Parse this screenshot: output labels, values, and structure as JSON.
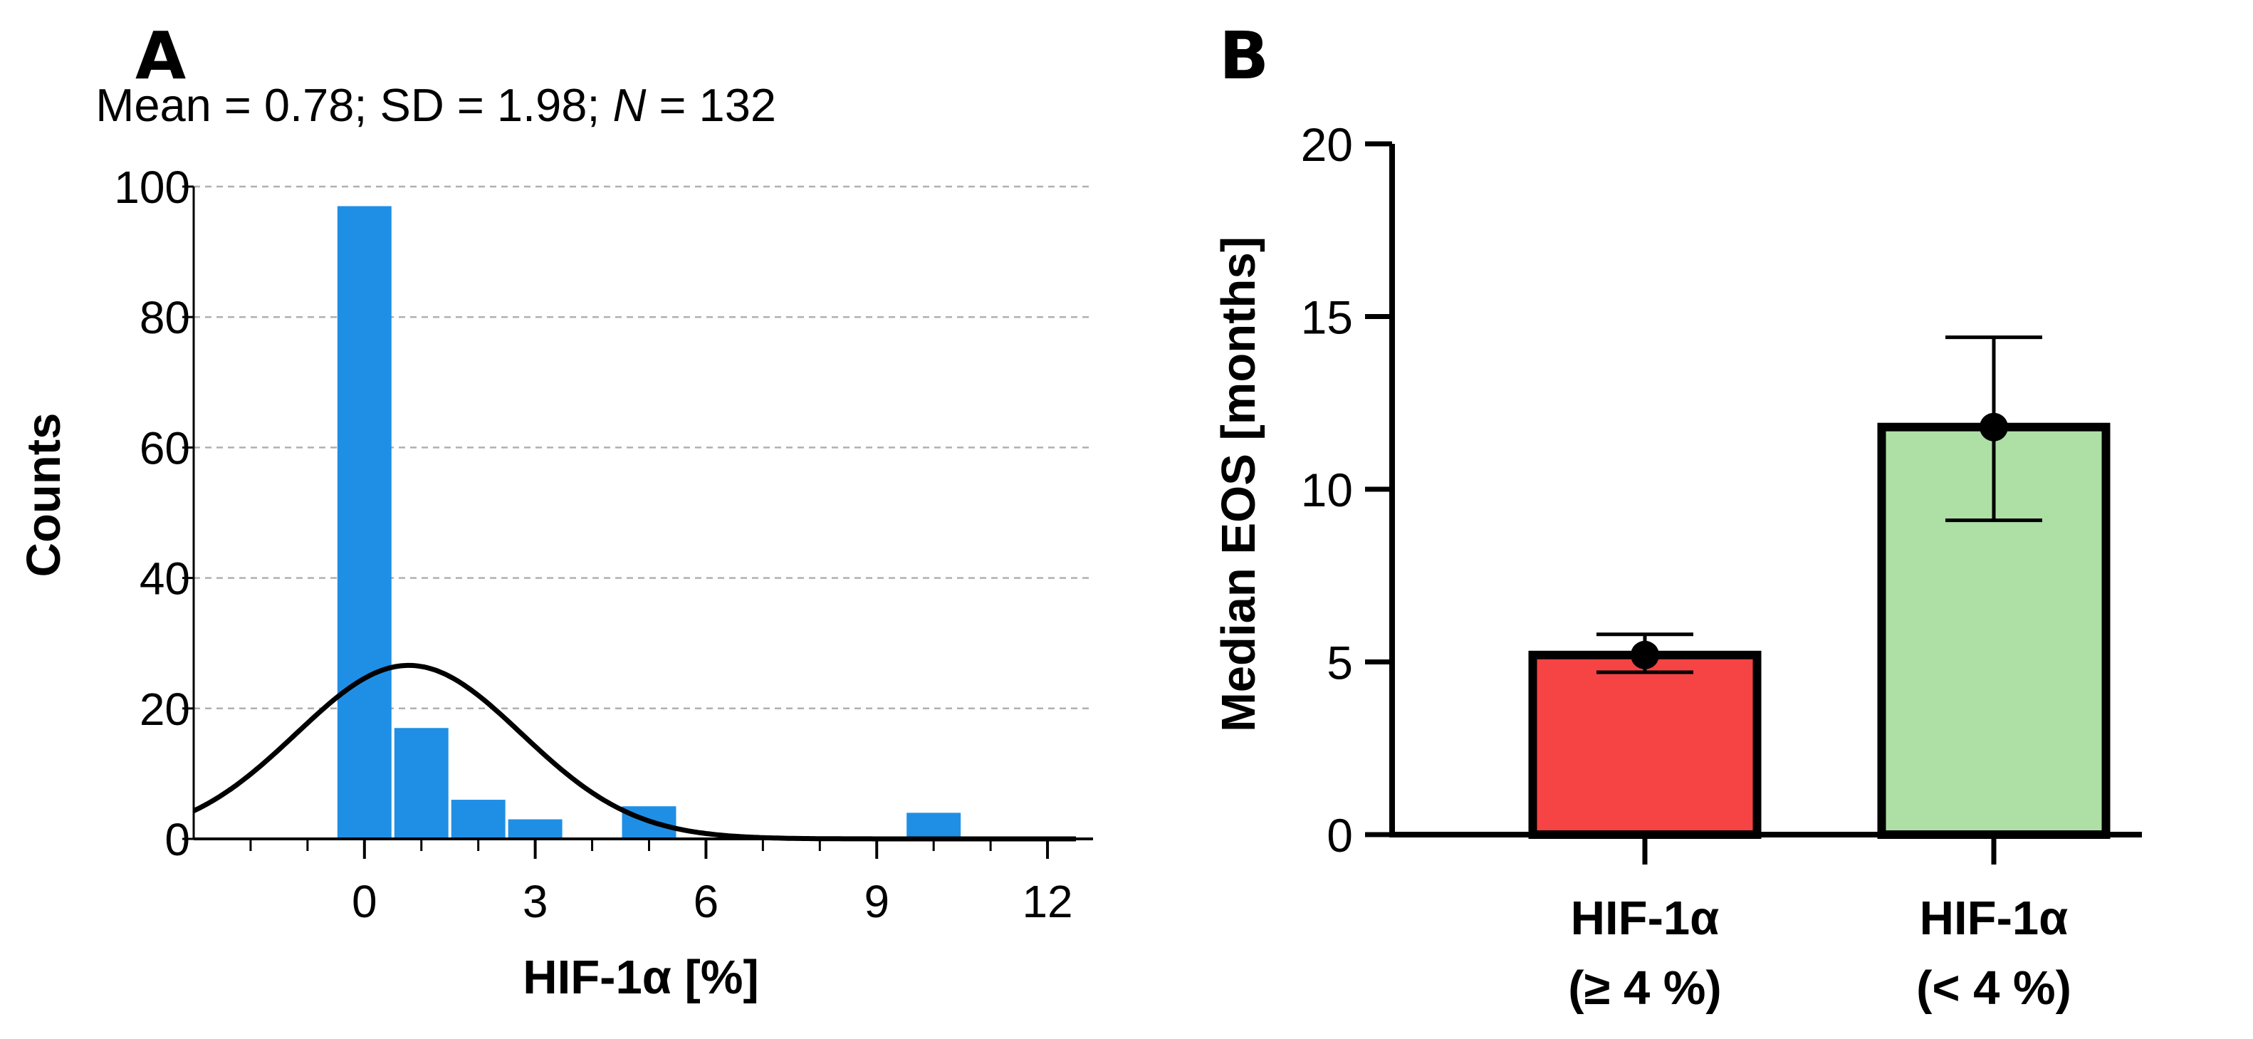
{
  "panels": {
    "a": {
      "letter": "A"
    },
    "b": {
      "letter": "B"
    }
  },
  "chart_data": [
    {
      "type": "bar",
      "subtype": "histogram_with_normal_fit",
      "panel": "A",
      "stats": {
        "mean_label": "Mean = 0.78;",
        "sd_label": "SD = 1.98;",
        "n_symbol": "N",
        "n_value": "= 132"
      },
      "bins": [
        {
          "x0": -0.5,
          "x1": 0.5,
          "count": 97
        },
        {
          "x0": 0.5,
          "x1": 1.5,
          "count": 17
        },
        {
          "x0": 1.5,
          "x1": 2.5,
          "count": 6
        },
        {
          "x0": 2.5,
          "x1": 3.5,
          "count": 3
        },
        {
          "x0": 4.5,
          "x1": 5.5,
          "count": 5
        },
        {
          "x0": 9.5,
          "x1": 10.5,
          "count": 4
        }
      ],
      "fit": {
        "mean": 0.78,
        "sd": 1.98,
        "n": 132,
        "binwidth": 1
      },
      "xlabel": "HIF-1α [%]",
      "ylabel": "Counts",
      "xlim": [
        -3,
        12.8
      ],
      "ylim": [
        0,
        100
      ],
      "xticks": [
        0,
        3,
        6,
        9,
        12
      ],
      "xticks_minor": [
        -2,
        -1,
        1,
        2,
        4,
        5,
        7,
        8,
        10,
        11
      ],
      "yticks": [
        0,
        20,
        40,
        60,
        80,
        100
      ],
      "grid": true,
      "bar_color": "#1f8fe6",
      "curve_color": "#000000"
    },
    {
      "type": "bar",
      "panel": "B",
      "categories": [
        {
          "line1": "HIF-1α",
          "line2": "(≥ 4 %)"
        },
        {
          "line1": "HIF-1α",
          "line2": "(< 4 %)"
        }
      ],
      "values": [
        5.2,
        11.8
      ],
      "errors": [
        {
          "low": 4.7,
          "high": 5.8
        },
        {
          "low": 9.1,
          "high": 14.4
        }
      ],
      "colors": [
        "#f64343",
        "#aee0a6"
      ],
      "ylabel": "Median EOS [months]",
      "ylim": [
        0,
        20
      ],
      "yticks": [
        0,
        5,
        10,
        15,
        20
      ],
      "grid": false
    }
  ]
}
